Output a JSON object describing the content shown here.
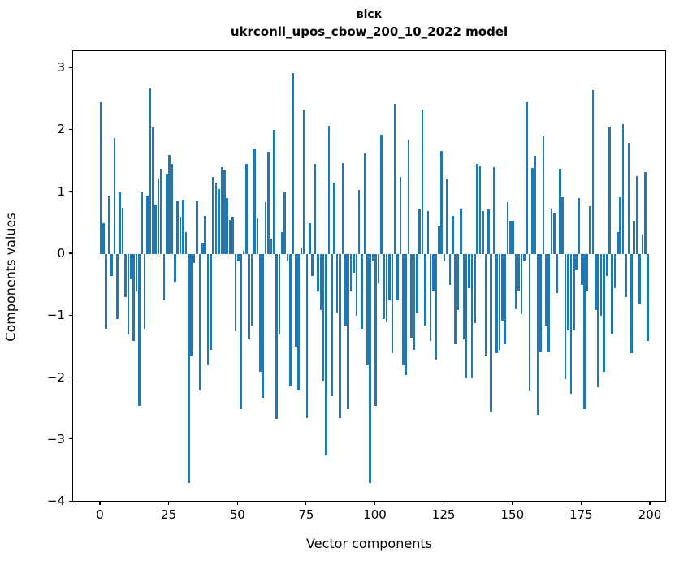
{
  "title": {
    "line1": "віск",
    "line2": "ukrconll_upos_cbow_200_10_2022 model"
  },
  "axes": {
    "xlabel": "Vector components",
    "ylabel": "Components values",
    "x_ticks": [
      0,
      25,
      50,
      75,
      100,
      125,
      150,
      175,
      200
    ],
    "y_ticks": [
      -4,
      -3,
      -2,
      -1,
      0,
      1,
      2,
      3
    ]
  },
  "colors": {
    "bar": "#1f77b4",
    "spine": "#000000",
    "background": "#ffffff"
  },
  "chart_data": {
    "type": "bar",
    "title": "віск — ukrconll_upos_cbow_200_10_2022 model",
    "xlabel": "Vector components",
    "ylabel": "Components values",
    "xlim": [
      -10,
      206
    ],
    "ylim": [
      -4.03,
      3.28
    ],
    "grid": false,
    "legend_position": "none",
    "bar_color": "#1f77b4",
    "n_components": 200,
    "values": [
      2.45,
      0.5,
      -1.2,
      0.95,
      -0.35,
      1.88,
      -1.05,
      1.0,
      0.75,
      -0.7,
      -1.3,
      -0.4,
      -1.4,
      -0.6,
      -2.45,
      1.0,
      -1.2,
      0.95,
      2.67,
      2.05,
      0.8,
      1.22,
      1.38,
      -0.75,
      1.3,
      1.6,
      1.45,
      -0.45,
      0.85,
      0.6,
      0.88,
      0.35,
      -3.7,
      -1.65,
      -0.15,
      0.85,
      -2.2,
      0.18,
      0.62,
      -1.8,
      -1.55,
      1.25,
      1.15,
      1.05,
      1.4,
      1.35,
      0.9,
      0.55,
      0.6,
      -1.25,
      -0.12,
      -2.5,
      0.05,
      1.45,
      -1.38,
      -1.15,
      1.7,
      0.58,
      -1.9,
      -2.32,
      0.84,
      1.65,
      0.25,
      2.0,
      -2.66,
      -1.3,
      0.35,
      1.0,
      -0.1,
      -2.13,
      2.92,
      -1.5,
      -2.2,
      0.1,
      2.32,
      -2.65,
      0.5,
      -0.35,
      1.45,
      -0.6,
      -0.9,
      -2.05,
      -3.25,
      2.07,
      -2.3,
      1.15,
      -0.95,
      -2.65,
      1.47,
      -1.15,
      -2.5,
      -0.6,
      -0.3,
      -1.0,
      1.03,
      -1.2,
      1.62,
      -1.8,
      -3.7,
      -0.1,
      -2.45,
      -0.47,
      1.93,
      -1.05,
      -1.1,
      -0.75,
      -1.6,
      2.43,
      -0.75,
      1.25,
      -1.8,
      -1.95,
      1.85,
      -1.35,
      -1.55,
      -0.95,
      0.73,
      2.33,
      -1.15,
      0.7,
      -1.4,
      -0.6,
      -1.7,
      0.45,
      1.66,
      -0.1,
      1.22,
      -0.5,
      0.62,
      -1.45,
      -0.9,
      0.73,
      -1.38,
      -2.0,
      -0.55,
      -2.0,
      -1.12,
      1.45,
      1.42,
      0.69,
      -1.65,
      0.72,
      -2.55,
      1.4,
      -1.6,
      -1.55,
      -1.08,
      -1.45,
      0.84,
      0.54,
      0.54,
      -0.89,
      -0.59,
      -0.97,
      -0.1,
      2.45,
      -2.21,
      1.39,
      1.58,
      -2.6,
      -1.57,
      1.91,
      -1.15,
      -1.57,
      0.73,
      0.66,
      -0.63,
      1.37,
      0.92,
      -2.02,
      -1.23,
      -2.25,
      -1.23,
      -0.25,
      0.9,
      -0.5,
      -2.5,
      -0.6,
      0.77,
      2.65,
      -0.9,
      -2.15,
      -1.0,
      -1.9,
      -0.35,
      2.05,
      -1.3,
      -0.55,
      0.35,
      0.92,
      2.1,
      -0.7,
      1.79,
      -1.6,
      0.54,
      1.26,
      -0.8,
      0.32,
      1.33,
      -1.4
    ]
  }
}
